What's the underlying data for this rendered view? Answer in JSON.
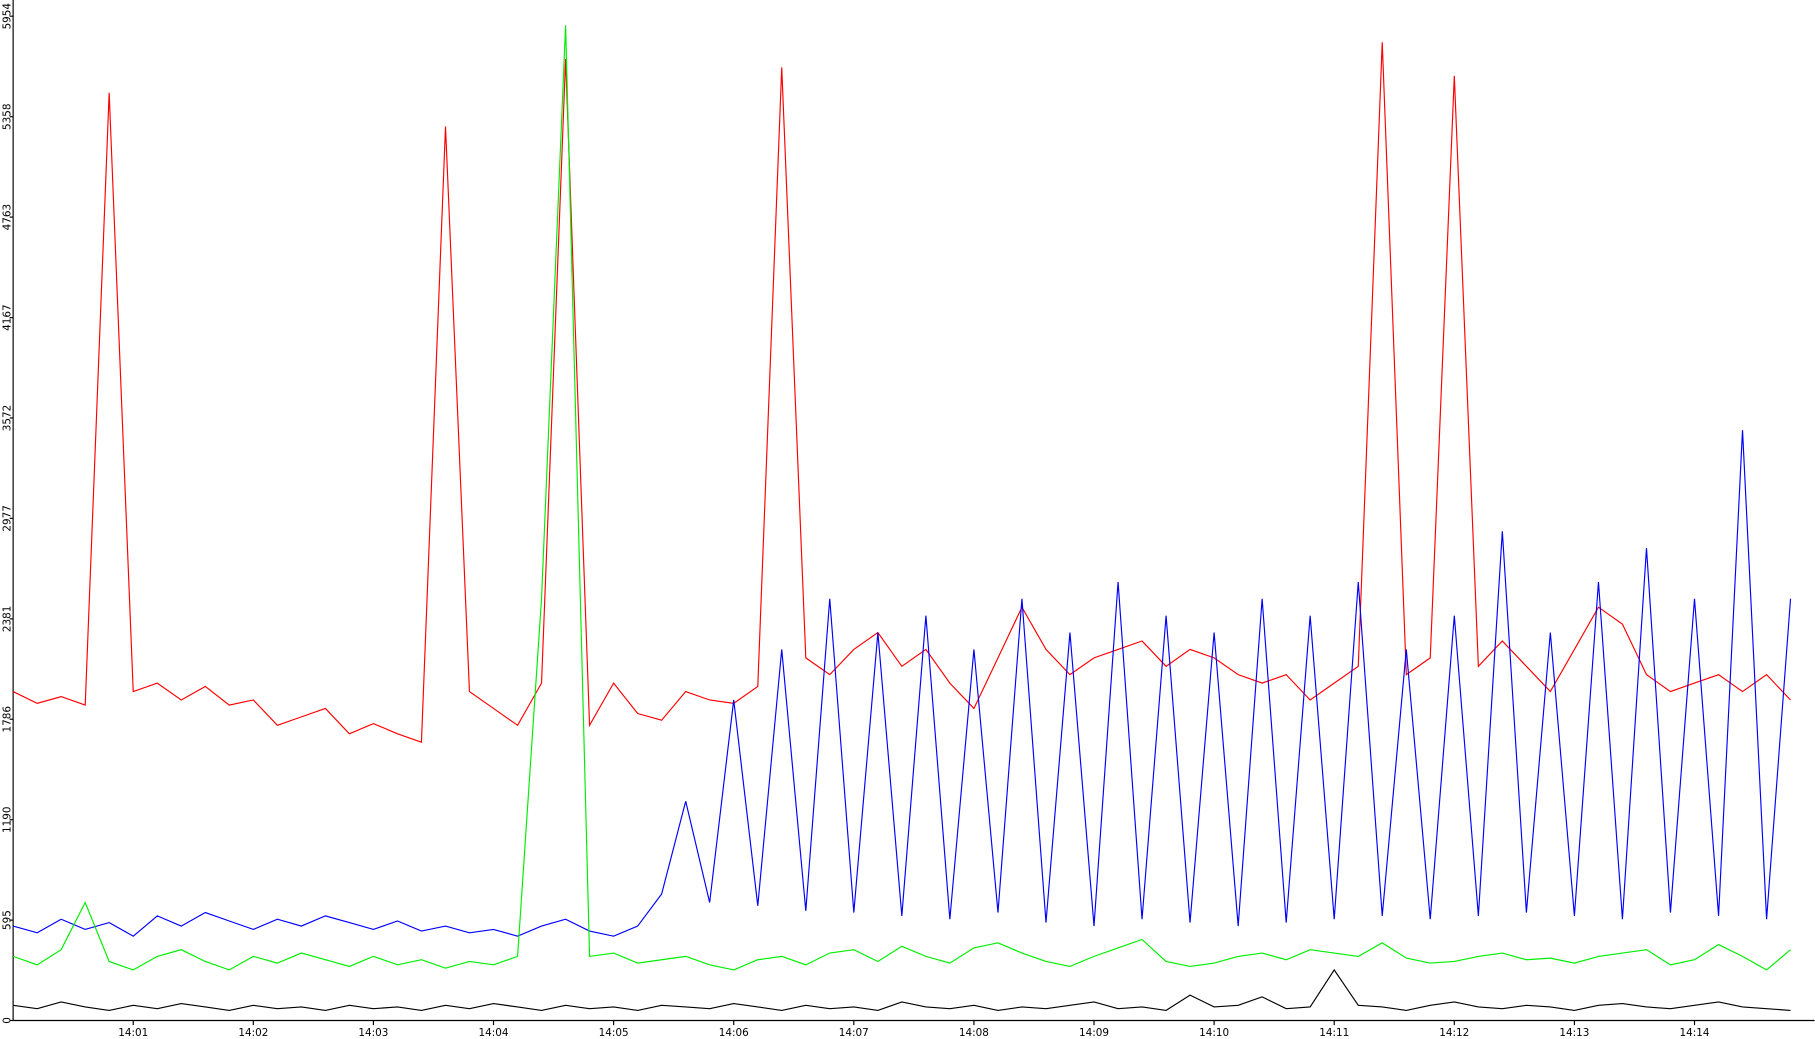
{
  "chart_data": {
    "type": "line",
    "x": [
      0,
      0.2,
      0.4,
      0.6,
      0.8,
      1,
      1.2,
      1.4,
      1.6,
      1.8,
      2,
      2.2,
      2.4,
      2.6,
      2.8,
      3,
      3.2,
      3.4,
      3.6,
      3.8,
      4,
      4.2,
      4.4,
      4.6,
      4.8,
      5,
      5.2,
      5.4,
      5.6,
      5.8,
      6,
      6.2,
      6.4,
      6.6,
      6.8,
      7,
      7.2,
      7.4,
      7.6,
      7.8,
      8,
      8.2,
      8.4,
      8.6,
      8.8,
      9,
      9.2,
      9.4,
      9.6,
      9.8,
      10,
      10.2,
      10.4,
      10.6,
      10.8,
      11,
      11.2,
      11.4,
      11.6,
      11.8,
      12,
      12.2,
      12.4,
      12.6,
      12.8,
      13,
      13.2,
      13.4,
      13.6,
      13.8,
      14,
      14.2,
      14.4,
      14.6,
      14.8
    ],
    "series": [
      {
        "color": "#ff0000",
        "values": [
          1950,
          1880,
          1920,
          1870,
          5500,
          1950,
          2000,
          1900,
          1980,
          1870,
          1900,
          1750,
          1800,
          1850,
          1700,
          1760,
          1700,
          1650,
          5300,
          1950,
          1850,
          1750,
          2000,
          5700,
          1750,
          2000,
          1820,
          1780,
          1950,
          1900,
          1880,
          1980,
          5650,
          2150,
          2050,
          2200,
          2300,
          2100,
          2200,
          2000,
          1850,
          2150,
          2450,
          2200,
          2050,
          2150,
          2200,
          2250,
          2100,
          2200,
          2150,
          2050,
          2000,
          2050,
          1900,
          2000,
          2100,
          5800,
          2050,
          2150,
          5600,
          2100,
          2250,
          2100,
          1950,
          2200,
          2450,
          2350,
          2050,
          1950,
          2000,
          2050,
          1950,
          2050,
          1900
        ]
      },
      {
        "color": "#0000ff",
        "values": [
          560,
          520,
          600,
          540,
          580,
          500,
          620,
          560,
          640,
          590,
          540,
          600,
          560,
          620,
          580,
          540,
          590,
          530,
          560,
          520,
          540,
          500,
          560,
          600,
          530,
          500,
          560,
          750,
          1300,
          700,
          1900,
          680,
          2200,
          650,
          2500,
          640,
          2300,
          620,
          2400,
          600,
          2200,
          640,
          2500,
          580,
          2300,
          560,
          2600,
          600,
          2400,
          580,
          2300,
          560,
          2500,
          580,
          2400,
          600,
          2600,
          620,
          2200,
          600,
          2400,
          620,
          2900,
          640,
          2300,
          620,
          2600,
          600,
          2800,
          640,
          2500,
          620,
          3500,
          600,
          2500
        ]
      },
      {
        "color": "#00ee00",
        "values": [
          380,
          330,
          420,
          700,
          350,
          300,
          380,
          420,
          350,
          300,
          380,
          340,
          400,
          360,
          320,
          380,
          330,
          360,
          310,
          350,
          330,
          380,
          2500,
          5900,
          380,
          400,
          340,
          360,
          380,
          330,
          300,
          360,
          380,
          330,
          400,
          420,
          350,
          440,
          380,
          340,
          430,
          460,
          400,
          350,
          320,
          380,
          430,
          480,
          350,
          320,
          340,
          380,
          400,
          360,
          420,
          400,
          380,
          460,
          370,
          340,
          350,
          380,
          400,
          360,
          370,
          340,
          380,
          400,
          420,
          330,
          360,
          450,
          380,
          300,
          420
        ]
      },
      {
        "color": "#000000",
        "values": [
          90,
          70,
          110,
          80,
          60,
          90,
          70,
          100,
          80,
          60,
          90,
          70,
          80,
          60,
          90,
          70,
          80,
          60,
          90,
          70,
          100,
          80,
          60,
          90,
          70,
          80,
          60,
          90,
          80,
          70,
          100,
          80,
          60,
          90,
          70,
          80,
          60,
          110,
          80,
          70,
          90,
          60,
          80,
          70,
          90,
          110,
          70,
          80,
          60,
          150,
          80,
          90,
          140,
          70,
          80,
          300,
          90,
          80,
          60,
          90,
          110,
          80,
          70,
          90,
          80,
          60,
          90,
          100,
          80,
          70,
          90,
          110,
          80,
          70,
          60
        ]
      }
    ],
    "xlim": [
      0,
      15
    ],
    "xticks": [
      {
        "value": 1,
        "label": "14:01"
      },
      {
        "value": 2,
        "label": "14:02"
      },
      {
        "value": 3,
        "label": "14:03"
      },
      {
        "value": 4,
        "label": "14:04"
      },
      {
        "value": 5,
        "label": "14:05"
      },
      {
        "value": 6,
        "label": "14:06"
      },
      {
        "value": 7,
        "label": "14:07"
      },
      {
        "value": 8,
        "label": "14:08"
      },
      {
        "value": 9,
        "label": "14:09"
      },
      {
        "value": 10,
        "label": "14:10"
      },
      {
        "value": 11,
        "label": "14:11"
      },
      {
        "value": 12,
        "label": "14:12"
      },
      {
        "value": 13,
        "label": "14:13"
      },
      {
        "value": 14,
        "label": "14:14"
      }
    ],
    "ylim": [
      0,
      5954
    ],
    "yticks": [
      0,
      595,
      1190,
      1786,
      2381,
      2977,
      3572,
      4167,
      4763,
      5358,
      5954
    ]
  }
}
